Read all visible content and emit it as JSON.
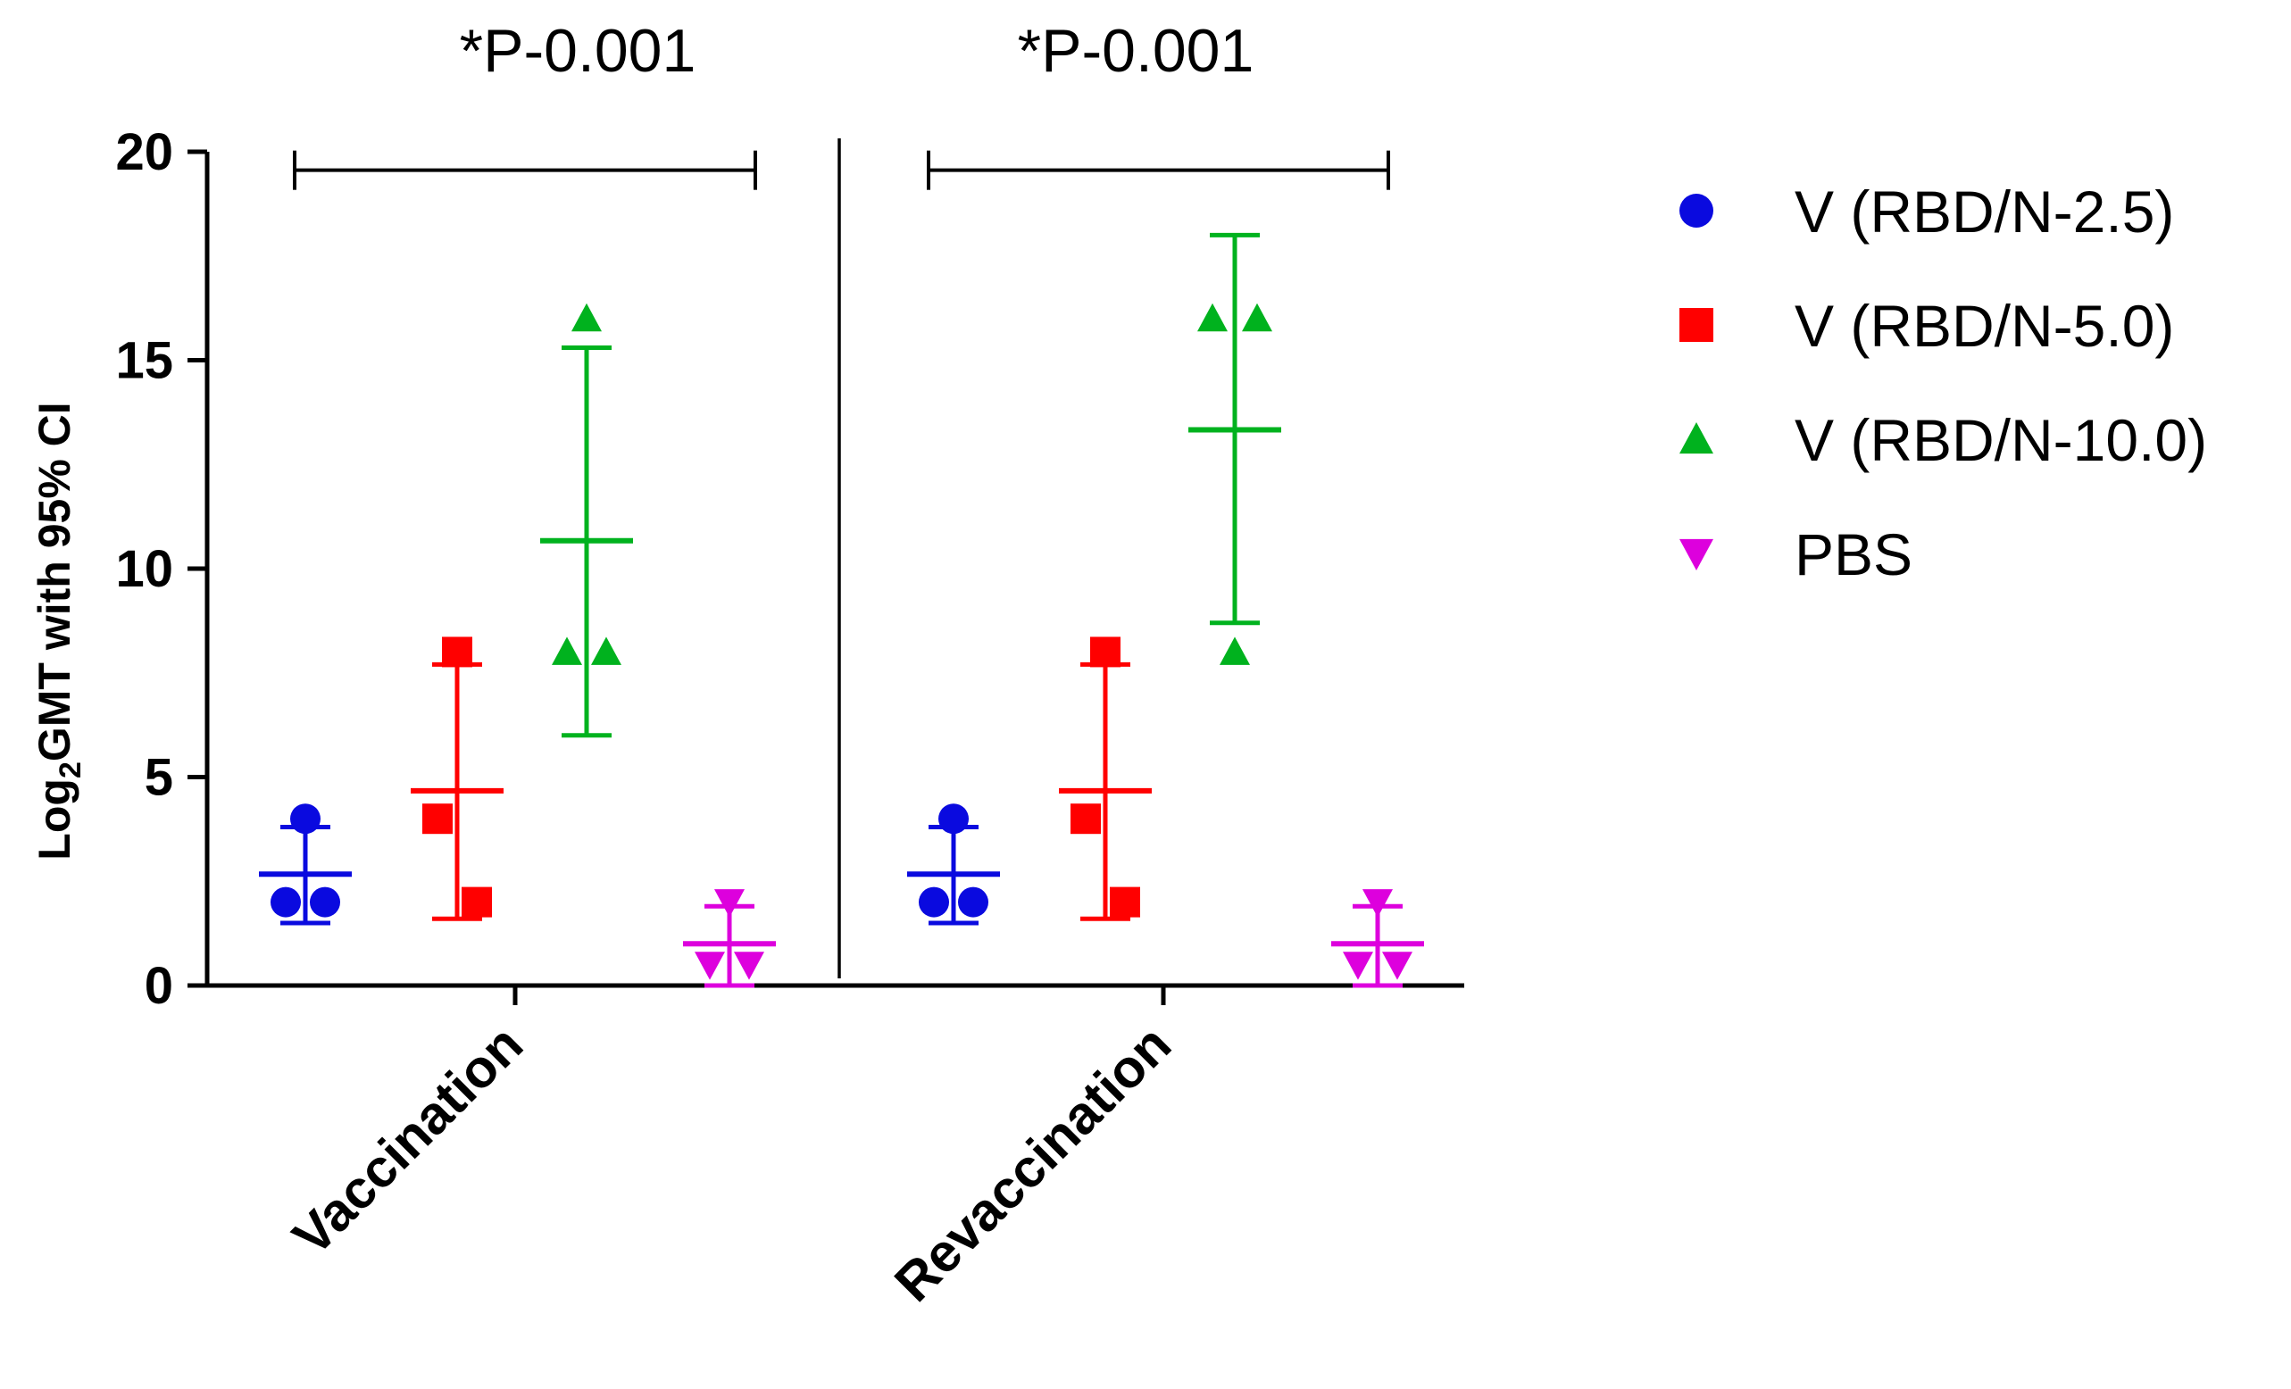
{
  "chart_data": {
    "type": "scatter",
    "title": "",
    "xlabel": "",
    "ylabel": "Log2GMT with 95% CI",
    "ylabel_parts": {
      "prefix": "Log",
      "subscript": "2",
      "suffix": "GMT with 95% CI"
    },
    "ylim": [
      0,
      20
    ],
    "yticks": [
      0,
      5,
      10,
      15,
      20
    ],
    "yticklabels": [
      "0",
      "5",
      "10",
      "15",
      "20"
    ],
    "categories": [
      "Vaccination",
      "Revaccination"
    ],
    "series": [
      {
        "name": "V (RBD/N-2.5)",
        "marker": "circle",
        "color": "#0a0adf",
        "points": [
          [
            4,
            2,
            2
          ],
          [
            4,
            2,
            2
          ]
        ],
        "mean": [
          2.67,
          2.67
        ],
        "ci": [
          [
            1.5,
            3.8
          ],
          [
            1.5,
            3.8
          ]
        ]
      },
      {
        "name": "V (RBD/N-5.0)",
        "marker": "square",
        "color": "#ff0000",
        "points": [
          [
            8,
            4,
            2
          ],
          [
            8,
            4,
            2
          ]
        ],
        "mean": [
          4.67,
          4.67
        ],
        "ci": [
          [
            1.6,
            7.7
          ],
          [
            1.6,
            7.7
          ]
        ]
      },
      {
        "name": "V (RBD/N-10.0)",
        "marker": "triangle-up",
        "color": "#00b21e",
        "points": [
          [
            16,
            8,
            8
          ],
          [
            16,
            16,
            8
          ]
        ],
        "mean": [
          10.67,
          13.33
        ],
        "ci": [
          [
            6.0,
            15.3
          ],
          [
            8.7,
            18.0
          ]
        ]
      },
      {
        "name": "PBS",
        "marker": "triangle-down",
        "color": "#dd00dd",
        "points": [
          [
            2,
            0.5,
            0.5
          ],
          [
            2,
            0.5,
            0.5
          ]
        ],
        "mean": [
          1.0,
          1.0
        ],
        "ci": [
          [
            0.0,
            1.9
          ],
          [
            0.0,
            1.9
          ]
        ]
      }
    ],
    "annotations": [
      {
        "text": "*P-0.001",
        "group": "Vaccination",
        "bracket_y": 19.6
      },
      {
        "text": "*P-0.001",
        "group": "Revaccination",
        "bracket_y": 19.6
      }
    ],
    "legend_position": "right"
  }
}
